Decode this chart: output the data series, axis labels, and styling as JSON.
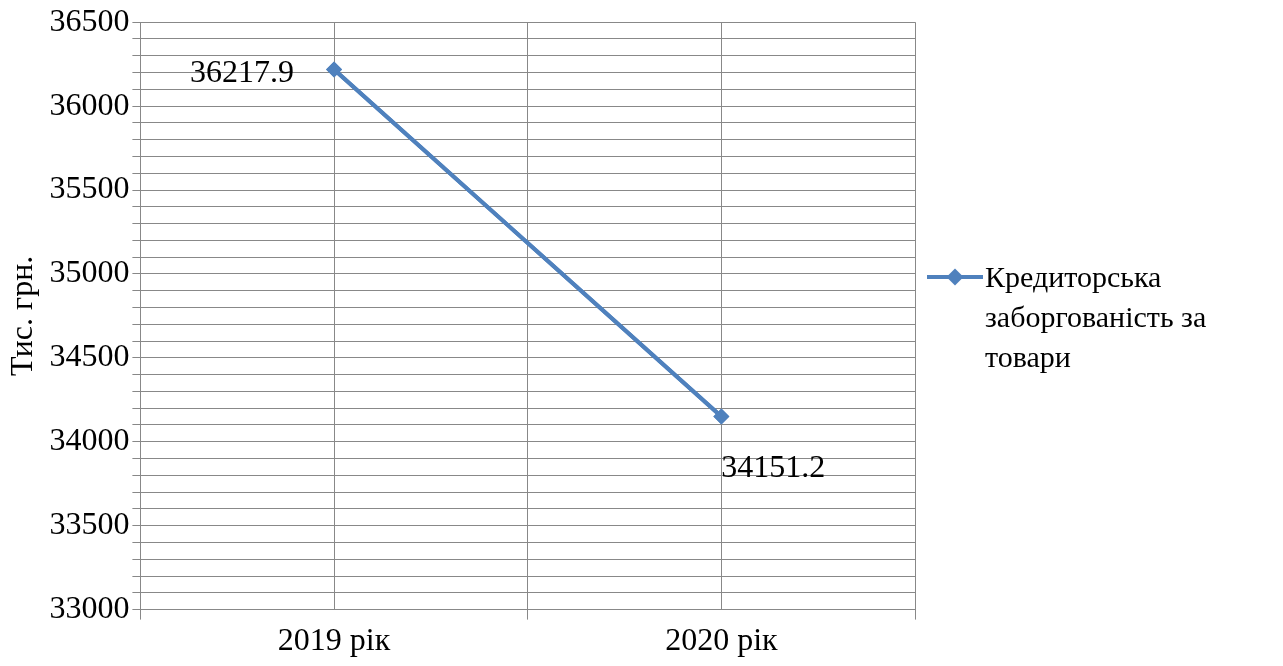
{
  "chart_data": {
    "type": "line",
    "ylabel": "Тис. грн.",
    "categories": [
      "2019 рік",
      "2020 рік"
    ],
    "series": [
      {
        "name": "Кредиторська заборгованість за товари",
        "color": "#4f81bd",
        "values": [
          36217.9,
          34151.2
        ]
      }
    ],
    "ylim": [
      33000,
      36500
    ],
    "yticks": [
      33000,
      {
        "value": 33100,
        "label": null
      },
      {
        "value": 33200,
        "label": null
      },
      {
        "value": 33300,
        "label": null
      },
      {
        "value": 33400,
        "label": null
      },
      33500,
      {
        "value": 33600,
        "label": null
      },
      {
        "value": 33700,
        "label": null
      },
      {
        "value": 33800,
        "label": null
      },
      {
        "value": 33900,
        "label": null
      },
      34000,
      {
        "value": 34100,
        "label": null
      },
      {
        "value": 34200,
        "label": null
      },
      {
        "value": 34300,
        "label": null
      },
      {
        "value": 34400,
        "label": null
      },
      34500,
      {
        "value": 34600,
        "label": null
      },
      {
        "value": 34700,
        "label": null
      },
      {
        "value": 34800,
        "label": null
      },
      {
        "value": 34900,
        "label": null
      },
      35000,
      {
        "value": 35100,
        "label": null
      },
      {
        "value": 35200,
        "label": null
      },
      {
        "value": 35300,
        "label": null
      },
      {
        "value": 35400,
        "label": null
      },
      35500,
      {
        "value": 35600,
        "label": null
      },
      {
        "value": 35700,
        "label": null
      },
      {
        "value": 35800,
        "label": null
      },
      {
        "value": 35900,
        "label": null
      },
      36000,
      {
        "value": 36100,
        "label": null
      },
      {
        "value": 36200,
        "label": null
      },
      {
        "value": 36300,
        "label": null
      },
      {
        "value": 36400,
        "label": null
      },
      36500
    ],
    "grid": true,
    "legend": "right",
    "marker": "diamond",
    "line_style": "solid",
    "data_labels": true
  }
}
